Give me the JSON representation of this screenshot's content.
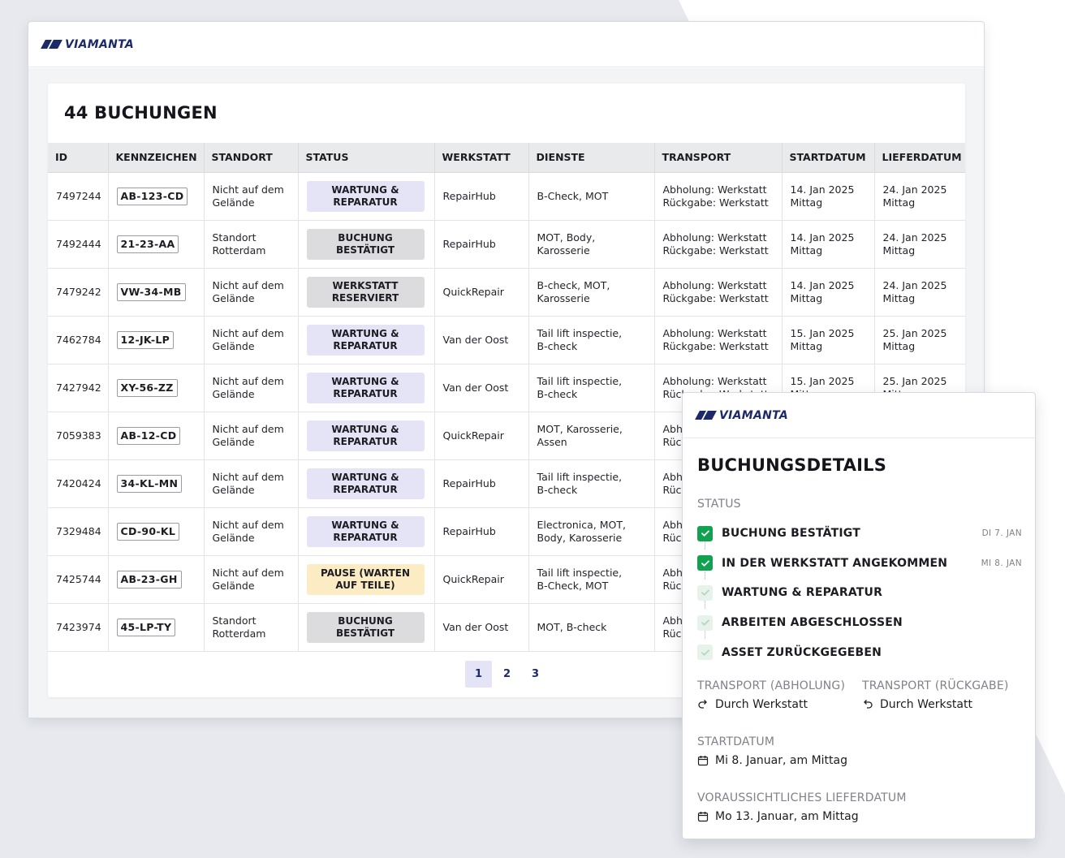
{
  "brand": {
    "name": "VIAMANTA",
    "navy": "#1d2a6a"
  },
  "bookings": {
    "title": "44 BUCHUNGEN",
    "columns": [
      "ID",
      "KENNZEICHEN",
      "STANDORT",
      "STATUS",
      "WERKSTATT",
      "DIENSTE",
      "TRANSPORT",
      "STARTDATUM",
      "LIEFERDATUM"
    ],
    "rows": [
      {
        "id": "7497244",
        "plate": "AB-123-CD",
        "location": [
          "Nicht auf dem",
          "Gelände"
        ],
        "status": [
          "WARTUNG &",
          "REPARATUR"
        ],
        "status_color": "lavender",
        "workshop": "RepairHub",
        "services": [
          "B-Check, MOT"
        ],
        "transport": [
          "Abholung: Werkstatt",
          "Rückgabe: Werkstatt"
        ],
        "start": [
          "14. Jan 2025",
          "Mittag"
        ],
        "delivery": [
          "24. Jan 2025",
          "Mittag"
        ]
      },
      {
        "id": "7492444",
        "plate": "21-23-AA",
        "location": [
          "Standort",
          "Rotterdam"
        ],
        "status": [
          "BUCHUNG",
          "BESTÄTIGT"
        ],
        "status_color": "grey",
        "workshop": "RepairHub",
        "services": [
          "MOT, Body,",
          "Karosserie"
        ],
        "transport": [
          "Abholung: Werkstatt",
          "Rückgabe: Werkstatt"
        ],
        "start": [
          "14. Jan 2025",
          "Mittag"
        ],
        "delivery": [
          "24. Jan 2025",
          "Mittag"
        ]
      },
      {
        "id": "7479242",
        "plate": "VW-34-MB",
        "location": [
          "Nicht auf dem",
          "Gelände"
        ],
        "status": [
          "WERKSTATT",
          "RESERVIERT"
        ],
        "status_color": "grey",
        "workshop": "QuickRepair",
        "services": [
          "B-check, MOT,",
          "Karosserie"
        ],
        "transport": [
          "Abholung: Werkstatt",
          "Rückgabe: Werkstatt"
        ],
        "start": [
          "14. Jan 2025",
          "Mittag"
        ],
        "delivery": [
          "24. Jan 2025",
          "Mittag"
        ]
      },
      {
        "id": "7462784",
        "plate": "12-JK-LP",
        "location": [
          "Nicht auf dem",
          "Gelände"
        ],
        "status": [
          "WARTUNG &",
          "REPARATUR"
        ],
        "status_color": "lavender",
        "workshop": "Van der Oost",
        "services": [
          "Tail lift inspectie,",
          "B-check"
        ],
        "transport": [
          "Abholung: Werkstatt",
          "Rückgabe: Werkstatt"
        ],
        "start": [
          "15. Jan 2025",
          "Mittag"
        ],
        "delivery": [
          "25. Jan 2025",
          "Mittag"
        ]
      },
      {
        "id": "7427942",
        "plate": "XY-56-ZZ",
        "location": [
          "Nicht auf dem",
          "Gelände"
        ],
        "status": [
          "WARTUNG &",
          "REPARATUR"
        ],
        "status_color": "lavender",
        "workshop": "Van der Oost",
        "services": [
          "Tail lift inspectie,",
          "B-check"
        ],
        "transport": [
          "Abholung: Werkstatt",
          "Rückgabe: Werkstatt"
        ],
        "start": [
          "15. Jan 2025",
          "Mittag"
        ],
        "delivery": [
          "25. Jan 2025",
          "Mittag"
        ]
      },
      {
        "id": "7059383",
        "plate": "AB-12-CD",
        "location": [
          "Nicht auf dem",
          "Gelände"
        ],
        "status": [
          "WARTUNG &",
          "REPARATUR"
        ],
        "status_color": "lavender",
        "workshop": "QuickRepair",
        "services": [
          "MOT, Karosserie,",
          "Assen"
        ],
        "transport": [
          "Abholung: Werkstatt",
          "Rückgabe: Werkstatt"
        ],
        "start": [
          "",
          ""
        ],
        "delivery": [
          "",
          ""
        ]
      },
      {
        "id": "7420424",
        "plate": "34-KL-MN",
        "location": [
          "Nicht auf dem",
          "Gelände"
        ],
        "status": [
          "WARTUNG &",
          "REPARATUR"
        ],
        "status_color": "lavender",
        "workshop": "RepairHub",
        "services": [
          "Tail lift inspectie,",
          "B-check"
        ],
        "transport": [
          "Abholung: Werkstatt",
          "Rückgabe: Werkstatt"
        ],
        "start": [
          "",
          ""
        ],
        "delivery": [
          "",
          ""
        ]
      },
      {
        "id": "7329484",
        "plate": "CD-90-KL",
        "location": [
          "Nicht auf dem",
          "Gelände"
        ],
        "status": [
          "WARTUNG &",
          "REPARATUR"
        ],
        "status_color": "lavender",
        "workshop": "RepairHub",
        "services": [
          "Electronica, MOT,",
          "Body, Karosserie"
        ],
        "transport": [
          "Abholung: Werkstatt",
          "Rückgabe: Werkstatt"
        ],
        "start": [
          "",
          ""
        ],
        "delivery": [
          "",
          ""
        ]
      },
      {
        "id": "7425744",
        "plate": "AB-23-GH",
        "location": [
          "Nicht auf dem",
          "Gelände"
        ],
        "status": [
          "PAUSE (WARTEN",
          "AUF TEILE)"
        ],
        "status_color": "yellow",
        "workshop": "QuickRepair",
        "services": [
          "Tail lift inspectie,",
          "B-Check, MOT"
        ],
        "transport": [
          "Abholung: Werkstatt",
          "Rückgabe: Werkstatt"
        ],
        "start": [
          "",
          ""
        ],
        "delivery": [
          "",
          ""
        ]
      },
      {
        "id": "7423974",
        "plate": "45-LP-TY",
        "location": [
          "Standort",
          "Rotterdam"
        ],
        "status": [
          "BUCHUNG",
          "BESTÄTIGT"
        ],
        "status_color": "grey",
        "workshop": "Van der Oost",
        "services": [
          "MOT, B-check"
        ],
        "transport": [
          "Abholung: Werkstatt",
          "Rückgabe: Werkstatt"
        ],
        "start": [
          "",
          ""
        ],
        "delivery": [
          "",
          ""
        ]
      }
    ],
    "pagination": {
      "pages": [
        "1",
        "2",
        "3"
      ],
      "current": "1"
    }
  },
  "details": {
    "title": "BUCHUNGSDETAILS",
    "status_label": "STATUS",
    "steps": [
      {
        "label": "BUCHUNG BESTÄTIGT",
        "date": "DI 7. JAN",
        "done": true
      },
      {
        "label": "IN DER WERKSTATT ANGEKOMMEN",
        "date": "MI 8. JAN",
        "done": true
      },
      {
        "label": "WARTUNG & REPARATUR",
        "date": "",
        "done": false
      },
      {
        "label": "ARBEITEN ABGESCHLOSSEN",
        "date": "",
        "done": false
      },
      {
        "label": "ASSET ZURÜCKGEGEBEN",
        "date": "",
        "done": false
      }
    ],
    "pickup_label": "TRANSPORT (ABHOLUNG)",
    "pickup_value": "Durch Werkstatt",
    "return_label": "TRANSPORT (RÜCKGABE)",
    "return_value": "Durch Werkstatt",
    "start_label": "STARTDATUM",
    "start_value": "Mi 8. Januar, am Mittag",
    "delivery_label": "VORAUSSICHTLICHES LIEFERDATUM",
    "delivery_value": "Mo 13. Januar, am Mittag",
    "icons": {
      "pickup": "redo-arrow-icon",
      "return": "undo-arrow-icon",
      "date": "calendar-icon"
    }
  },
  "colors": {
    "status_lavender": "#e5e4f7",
    "status_grey": "#dcdcde",
    "status_yellow": "#fbecc3",
    "check_green": "#12a150"
  }
}
